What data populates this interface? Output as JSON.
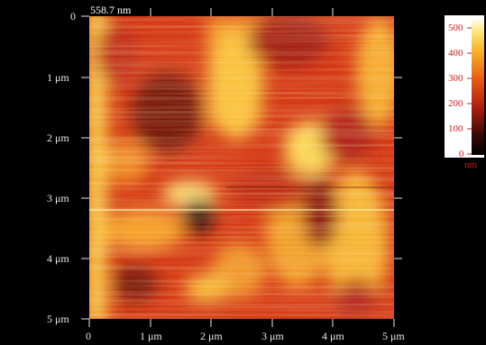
{
  "image": {
    "corner_value": "558.7 nm",
    "colormap": "afm-hot",
    "colors": {
      "background": "#000000",
      "label": "#e8e8e8",
      "colorbar_label": "#d21a1a"
    }
  },
  "y_axis": {
    "ticks": [
      "0",
      "1 μm",
      "2 μm",
      "3 μm",
      "4 μm",
      "5 μm"
    ]
  },
  "x_axis": {
    "ticks": [
      "0",
      "1 μm",
      "2 μm",
      "3 μm",
      "4 μm",
      "5 μm"
    ]
  },
  "colorbar": {
    "ticks": [
      "500",
      "400",
      "300",
      "200",
      "100",
      "0"
    ],
    "unit": "nm"
  }
}
